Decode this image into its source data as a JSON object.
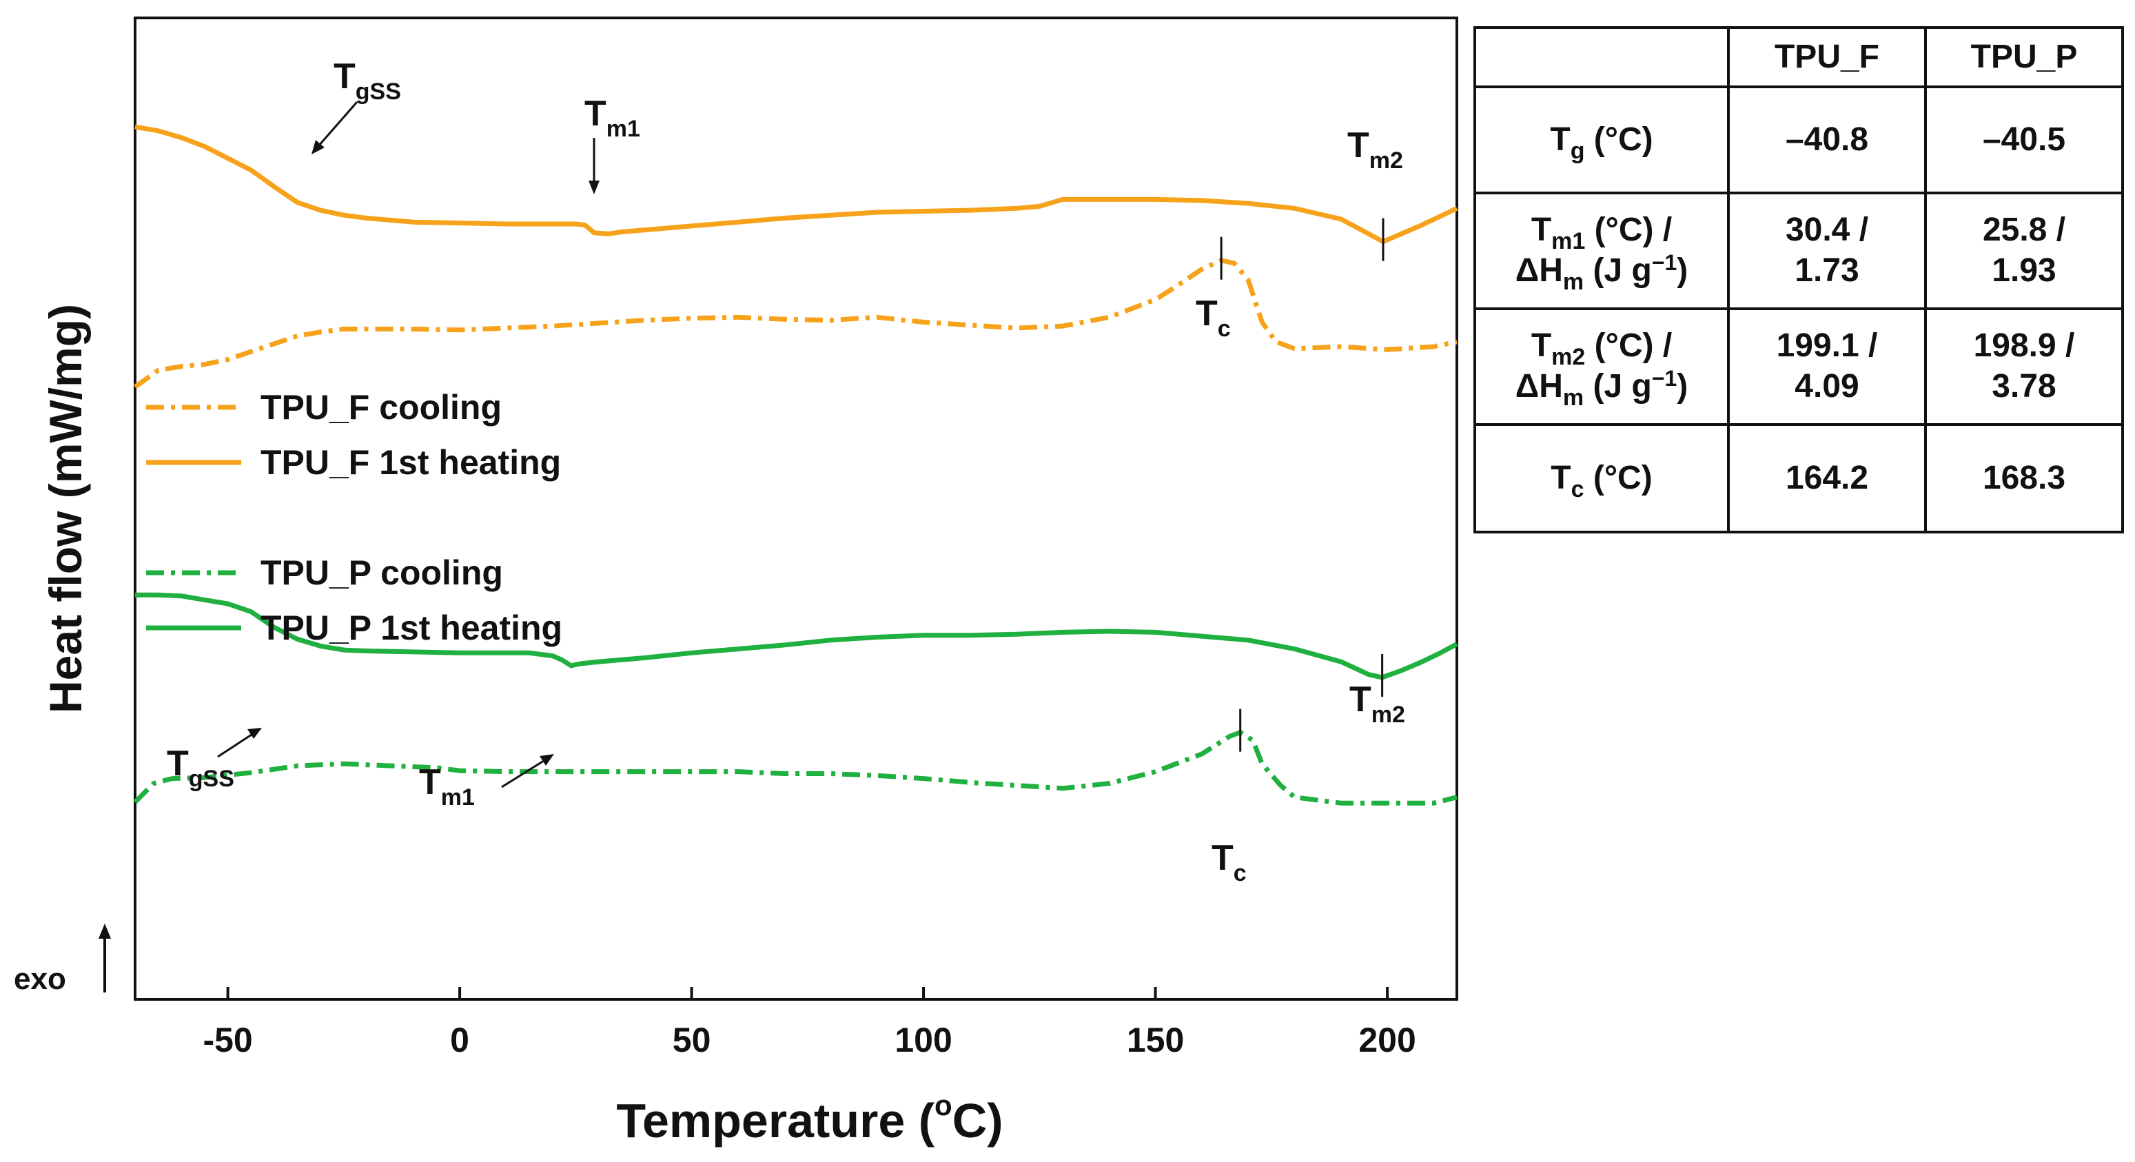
{
  "chart_data": {
    "type": "line",
    "title": "",
    "xlabel": "Temperature (°C)",
    "xlabel_parts": {
      "pre": "Temperature (",
      "sup": "o",
      "post": "C)"
    },
    "ylabel": "Heat flow (mW/mg)",
    "exo_label": "exo",
    "xlim": [
      -70,
      215
    ],
    "ylim": [
      0,
      1
    ],
    "x_ticks": [
      -50,
      0,
      50,
      100,
      150,
      200
    ],
    "x_tick_labels": [
      "-50",
      "0",
      "50",
      "100",
      "150",
      "200"
    ],
    "y_ticks": [],
    "grid": false,
    "legend_position": "middle-left",
    "series": [
      {
        "name": "TPU_F cooling",
        "color": "#f7a21b",
        "dash": "dashdot",
        "points": [
          [
            -70,
            0.624
          ],
          [
            -65,
            0.641
          ],
          [
            -60,
            0.645
          ],
          [
            -55,
            0.647
          ],
          [
            -50,
            0.652
          ],
          [
            -45,
            0.66
          ],
          [
            -40,
            0.668
          ],
          [
            -35,
            0.676
          ],
          [
            -30,
            0.68
          ],
          [
            -25,
            0.683
          ],
          [
            -20,
            0.683
          ],
          [
            -10,
            0.683
          ],
          [
            0,
            0.682
          ],
          [
            10,
            0.684
          ],
          [
            20,
            0.686
          ],
          [
            30,
            0.689
          ],
          [
            40,
            0.692
          ],
          [
            50,
            0.694
          ],
          [
            60,
            0.695
          ],
          [
            70,
            0.693
          ],
          [
            80,
            0.692
          ],
          [
            90,
            0.695
          ],
          [
            100,
            0.69
          ],
          [
            110,
            0.687
          ],
          [
            120,
            0.684
          ],
          [
            130,
            0.686
          ],
          [
            140,
            0.695
          ],
          [
            150,
            0.713
          ],
          [
            155,
            0.728
          ],
          [
            160,
            0.744
          ],
          [
            164.2,
            0.753
          ],
          [
            167,
            0.75
          ],
          [
            170,
            0.733
          ],
          [
            173,
            0.69
          ],
          [
            176,
            0.67
          ],
          [
            180,
            0.663
          ],
          [
            190,
            0.665
          ],
          [
            200,
            0.662
          ],
          [
            210,
            0.665
          ],
          [
            215,
            0.67
          ]
        ]
      },
      {
        "name": "TPU_F 1st heating",
        "color": "#f7a21b",
        "dash": "solid",
        "points": [
          [
            -70,
            0.889
          ],
          [
            -65,
            0.885
          ],
          [
            -60,
            0.878
          ],
          [
            -55,
            0.869
          ],
          [
            -50,
            0.857
          ],
          [
            -45,
            0.845
          ],
          [
            -40,
            0.828
          ],
          [
            -35,
            0.812
          ],
          [
            -30,
            0.804
          ],
          [
            -25,
            0.799
          ],
          [
            -20,
            0.796
          ],
          [
            -10,
            0.792
          ],
          [
            0,
            0.791
          ],
          [
            10,
            0.79
          ],
          [
            20,
            0.79
          ],
          [
            25,
            0.79
          ],
          [
            27,
            0.789
          ],
          [
            29,
            0.781
          ],
          [
            32,
            0.78
          ],
          [
            35,
            0.782
          ],
          [
            40,
            0.784
          ],
          [
            50,
            0.788
          ],
          [
            60,
            0.792
          ],
          [
            70,
            0.796
          ],
          [
            80,
            0.799
          ],
          [
            90,
            0.802
          ],
          [
            100,
            0.803
          ],
          [
            110,
            0.804
          ],
          [
            120,
            0.806
          ],
          [
            125,
            0.808
          ],
          [
            130,
            0.815
          ],
          [
            140,
            0.815
          ],
          [
            150,
            0.815
          ],
          [
            160,
            0.814
          ],
          [
            170,
            0.811
          ],
          [
            180,
            0.806
          ],
          [
            190,
            0.795
          ],
          [
            196,
            0.78
          ],
          [
            199.1,
            0.772
          ],
          [
            203,
            0.78
          ],
          [
            207,
            0.788
          ],
          [
            211,
            0.797
          ],
          [
            215,
            0.806
          ]
        ]
      },
      {
        "name": "TPU_P cooling",
        "color": "#1fb03f",
        "dash": "dashdot",
        "points": [
          [
            -70,
            0.201
          ],
          [
            -66,
            0.22
          ],
          [
            -62,
            0.225
          ],
          [
            -55,
            0.226
          ],
          [
            -45,
            0.231
          ],
          [
            -35,
            0.238
          ],
          [
            -25,
            0.24
          ],
          [
            -15,
            0.238
          ],
          [
            -5,
            0.236
          ],
          [
            0,
            0.233
          ],
          [
            10,
            0.232
          ],
          [
            20,
            0.232
          ],
          [
            30,
            0.232
          ],
          [
            40,
            0.232
          ],
          [
            50,
            0.232
          ],
          [
            60,
            0.232
          ],
          [
            70,
            0.23
          ],
          [
            80,
            0.23
          ],
          [
            90,
            0.228
          ],
          [
            100,
            0.225
          ],
          [
            110,
            0.221
          ],
          [
            120,
            0.218
          ],
          [
            130,
            0.215
          ],
          [
            140,
            0.22
          ],
          [
            150,
            0.232
          ],
          [
            160,
            0.25
          ],
          [
            166,
            0.268
          ],
          [
            168.3,
            0.272
          ],
          [
            171,
            0.264
          ],
          [
            173,
            0.24
          ],
          [
            177,
            0.218
          ],
          [
            180,
            0.206
          ],
          [
            190,
            0.2
          ],
          [
            200,
            0.2
          ],
          [
            210,
            0.2
          ],
          [
            215,
            0.206
          ]
        ]
      },
      {
        "name": "TPU_P 1st heating",
        "color": "#1fb03f",
        "dash": "solid",
        "points": [
          [
            -70,
            0.412
          ],
          [
            -65,
            0.412
          ],
          [
            -60,
            0.411
          ],
          [
            -55,
            0.407
          ],
          [
            -50,
            0.403
          ],
          [
            -45,
            0.395
          ],
          [
            -40,
            0.379
          ],
          [
            -35,
            0.367
          ],
          [
            -30,
            0.36
          ],
          [
            -25,
            0.356
          ],
          [
            -20,
            0.355
          ],
          [
            -10,
            0.354
          ],
          [
            0,
            0.353
          ],
          [
            10,
            0.353
          ],
          [
            15,
            0.353
          ],
          [
            20,
            0.35
          ],
          [
            22,
            0.346
          ],
          [
            24,
            0.34
          ],
          [
            26,
            0.342
          ],
          [
            30,
            0.344
          ],
          [
            40,
            0.348
          ],
          [
            50,
            0.353
          ],
          [
            60,
            0.357
          ],
          [
            70,
            0.361
          ],
          [
            80,
            0.366
          ],
          [
            90,
            0.369
          ],
          [
            100,
            0.371
          ],
          [
            110,
            0.371
          ],
          [
            120,
            0.372
          ],
          [
            130,
            0.374
          ],
          [
            140,
            0.375
          ],
          [
            150,
            0.374
          ],
          [
            160,
            0.37
          ],
          [
            170,
            0.366
          ],
          [
            180,
            0.357
          ],
          [
            190,
            0.344
          ],
          [
            196,
            0.331
          ],
          [
            198.9,
            0.328
          ],
          [
            203,
            0.335
          ],
          [
            207,
            0.343
          ],
          [
            211,
            0.352
          ],
          [
            215,
            0.362
          ]
        ]
      }
    ],
    "annotations": {
      "F_Tgss": {
        "base": "T",
        "sub": "gSS"
      },
      "F_Tm1": {
        "base": "T",
        "sub": "m1"
      },
      "F_Tm2": {
        "base": "T",
        "sub": "m2"
      },
      "F_Tc": {
        "base": "T",
        "sub": "c"
      },
      "P_Tgss": {
        "base": "T",
        "sub": "gSS"
      },
      "P_Tm1": {
        "base": "T",
        "sub": "m1"
      },
      "P_Tm2": {
        "base": "T",
        "sub": "m2"
      },
      "P_Tc": {
        "base": "T",
        "sub": "c"
      }
    }
  },
  "table": {
    "headers": [
      "",
      "TPU_F",
      "TPU_P"
    ],
    "rows": [
      {
        "label": {
          "b": "T",
          "s": "g",
          "a": " (°C)"
        },
        "f": [
          "–40.8"
        ],
        "p": [
          "–40.5"
        ]
      },
      {
        "label": {
          "b": "T",
          "s": "m1",
          "a": " (°C) /",
          "b2": "ΔH",
          "s2": "m",
          "a2": " (J g",
          "sup2": "−1",
          "a3": ")"
        },
        "f": [
          "30.4 /",
          "1.73"
        ],
        "p": [
          "25.8 /",
          "1.93"
        ]
      },
      {
        "label": {
          "b": "T",
          "s": "m2",
          "a": " (°C) /",
          "b2": "ΔH",
          "s2": "m",
          "a2": " (J g",
          "sup2": "−1",
          "a3": ")"
        },
        "f": [
          "199.1 /",
          "4.09"
        ],
        "p": [
          "198.9 /",
          "3.78"
        ]
      },
      {
        "label": {
          "b": "T",
          "s": "c",
          "a": " (°C)"
        },
        "f": [
          "164.2"
        ],
        "p": [
          "168.3"
        ]
      }
    ]
  }
}
